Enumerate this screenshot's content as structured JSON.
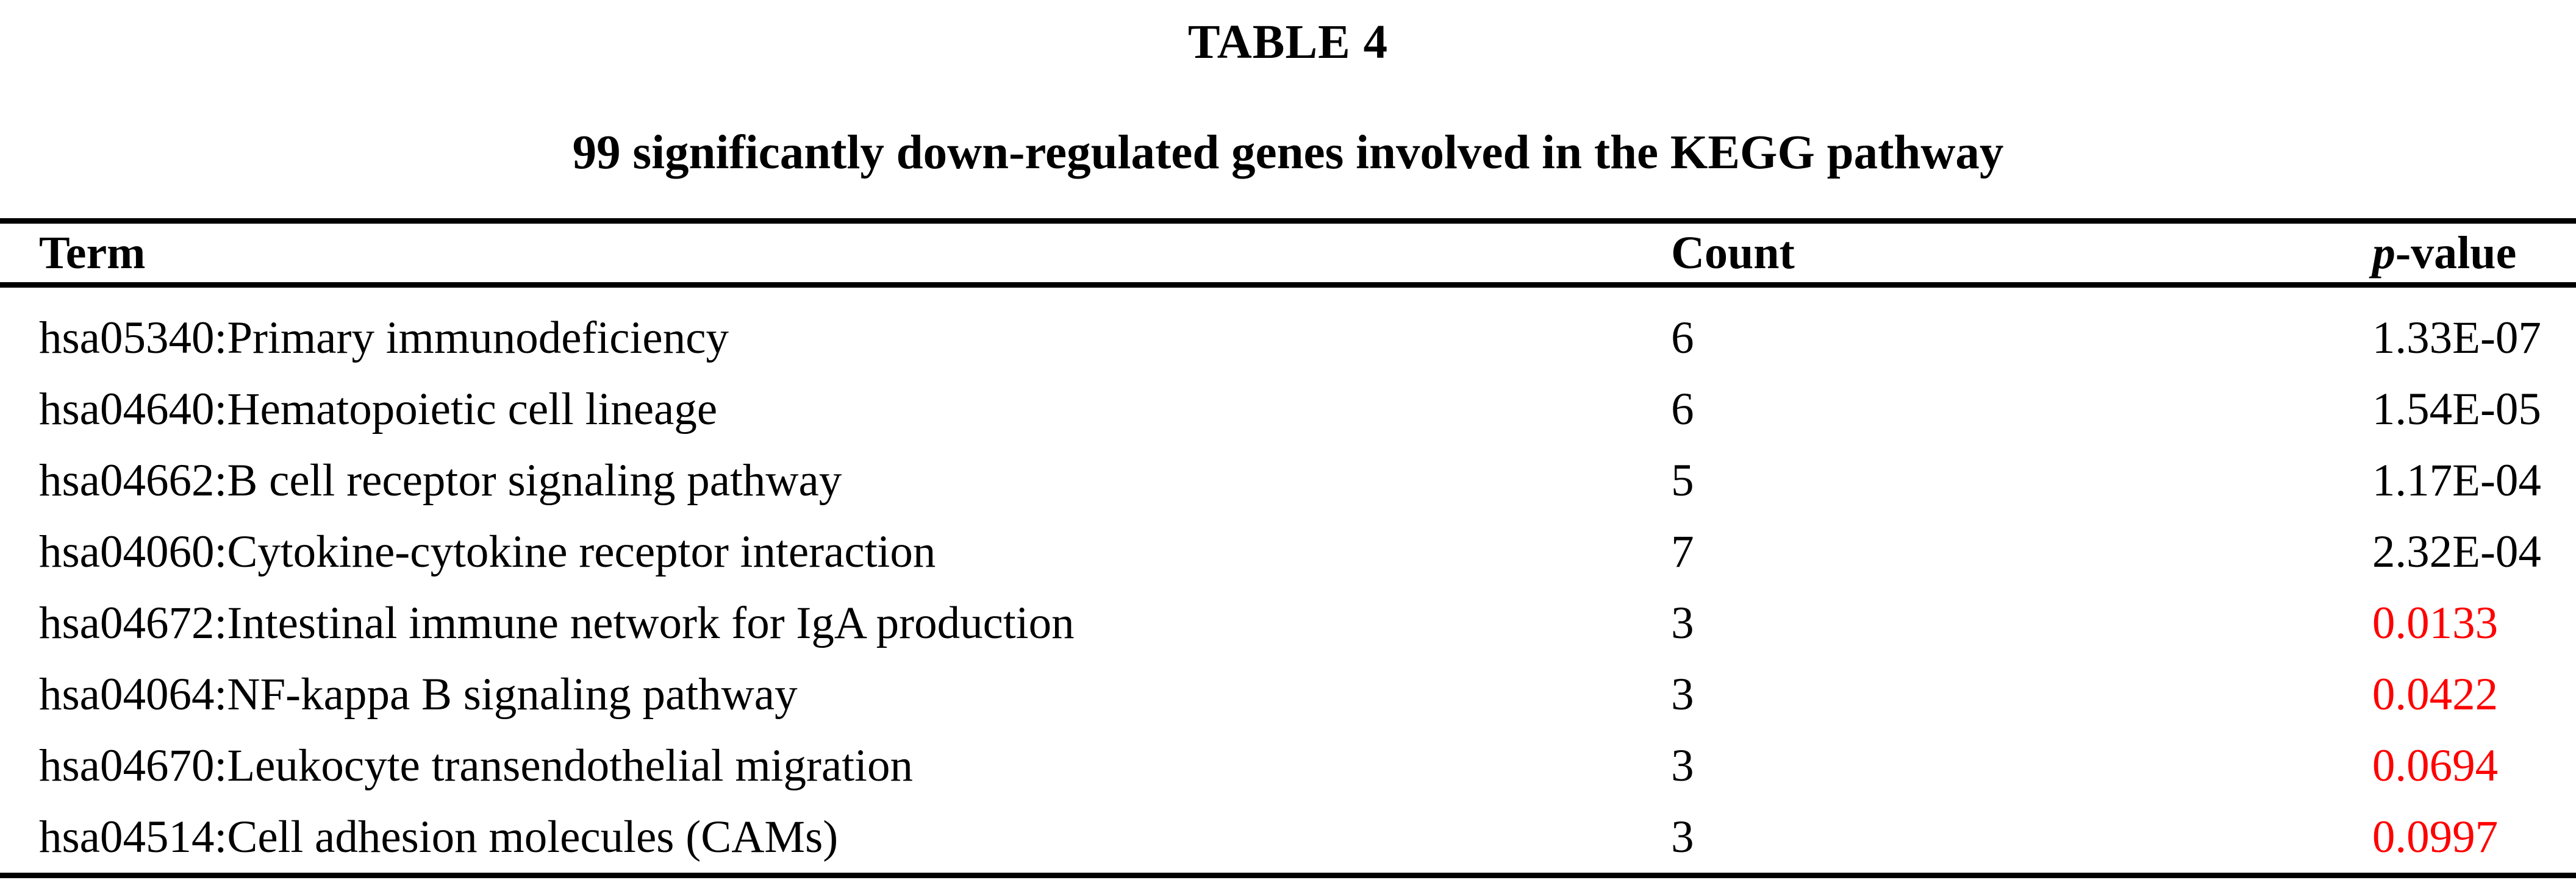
{
  "page": {
    "label": "TABLE 4",
    "caption": "99 significantly down-regulated genes involved in the KEGG pathway"
  },
  "colors": {
    "text": "#000000",
    "rule": "#000000",
    "background": "#ffffff",
    "significant_p_value": "#ff0000"
  },
  "table": {
    "headers": [
      {
        "label": "Term"
      },
      {
        "label": "Count"
      },
      {
        "label_italic": "p",
        "label_rest": "-value"
      }
    ],
    "rows": [
      {
        "term": "hsa05340:Primary immunodeficiency",
        "count": "6",
        "p_value": "1.33E-07",
        "p_value_color": "#000000"
      },
      {
        "term": "hsa04640:Hematopoietic cell lineage",
        "count": "6",
        "p_value": "1.54E-05",
        "p_value_color": "#000000"
      },
      {
        "term": "hsa04662:B cell receptor signaling pathway",
        "count": "5",
        "p_value": "1.17E-04",
        "p_value_color": "#000000"
      },
      {
        "term": "hsa04060:Cytokine-cytokine receptor interaction",
        "count": "7",
        "p_value": "2.32E-04",
        "p_value_color": "#000000"
      },
      {
        "term": "hsa04672:Intestinal immune network for IgA production",
        "count": "3",
        "p_value": "0.0133",
        "p_value_color": "#ff0000"
      },
      {
        "term": "hsa04064:NF-kappa B signaling pathway",
        "count": "3",
        "p_value": "0.0422",
        "p_value_color": "#ff0000"
      },
      {
        "term": "hsa04670:Leukocyte transendothelial migration",
        "count": "3",
        "p_value": "0.0694",
        "p_value_color": "#ff0000"
      },
      {
        "term": "hsa04514:Cell adhesion molecules (CAMs)",
        "count": "3",
        "p_value": "0.0997",
        "p_value_color": "#ff0000"
      }
    ]
  }
}
